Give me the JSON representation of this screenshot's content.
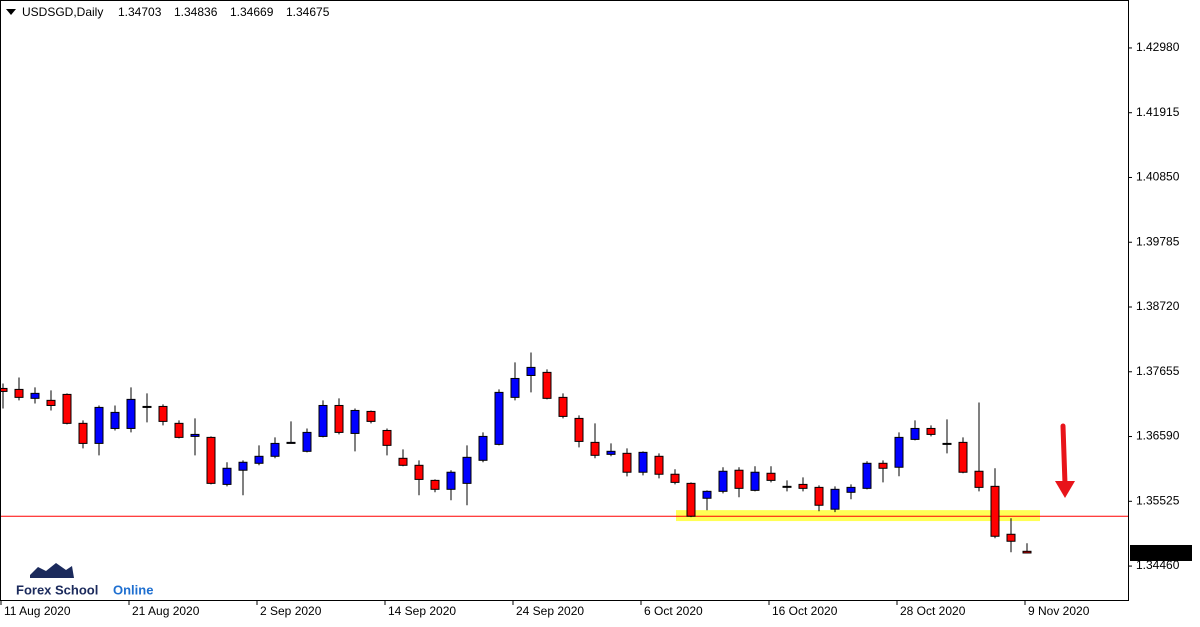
{
  "chart_data": {
    "type": "candlestick",
    "title": "USDSGD,Daily",
    "categories": [
      "11 Aug 2020",
      null,
      null,
      null,
      null,
      null,
      null,
      null,
      "21 Aug 2020",
      null,
      null,
      null,
      null,
      null,
      null,
      null,
      "2 Sep 2020",
      null,
      null,
      null,
      null,
      null,
      null,
      null,
      "14 Sep 2020",
      null,
      null,
      null,
      null,
      null,
      null,
      null,
      "24 Sep 2020",
      null,
      null,
      null,
      null,
      null,
      null,
      null,
      "6 Oct 2020",
      null,
      null,
      null,
      null,
      null,
      null,
      null,
      "16 Oct 2020",
      null,
      null,
      null,
      null,
      null,
      null,
      null,
      "28 Oct 2020",
      null,
      null,
      null,
      null,
      null,
      null,
      null,
      "9 Nov 2020"
    ],
    "open": [
      1.37381,
      1.37365,
      1.37218,
      1.37185,
      1.37283,
      1.36807,
      1.36477,
      1.36723,
      1.36723,
      1.37077,
      1.37085,
      1.36807,
      1.36592,
      1.36576,
      1.35803,
      1.36036,
      1.3615,
      1.36265,
      1.36477,
      1.36347,
      1.36592,
      1.37101,
      1.36641,
      1.37003,
      1.3669,
      1.36232,
      1.36117,
      1.35869,
      1.35722,
      1.3582,
      1.36199,
      1.36461,
      1.37234,
      1.37594,
      1.37645,
      1.37234,
      1.36888,
      1.36494,
      1.36297,
      1.36314,
      1.36003,
      1.36265,
      1.3597,
      1.3582,
      1.35575,
      1.35689,
      1.36036,
      1.35705,
      1.35986,
      1.35763,
      1.35803,
      1.35754,
      1.35395,
      1.35673,
      1.35738,
      1.3615,
      1.36085,
      1.36543,
      1.36723,
      1.36461,
      1.36494,
      1.36019,
      1.35771,
      1.34983,
      1.34703
    ],
    "high": [
      1.37463,
      1.37561,
      1.37398,
      1.37349,
      1.373,
      1.36856,
      1.37101,
      1.37101,
      1.37398,
      1.373,
      1.37118,
      1.36856,
      1.36888,
      1.36592,
      1.36167,
      1.36199,
      1.36445,
      1.36576,
      1.36839,
      1.36723,
      1.37185,
      1.37218,
      1.37052,
      1.37019,
      1.36723,
      1.36379,
      1.36199,
      1.35885,
      1.36036,
      1.36445,
      1.36658,
      1.37365,
      1.37809,
      1.37972,
      1.37694,
      1.373,
      1.36938,
      1.36807,
      1.36477,
      1.36396,
      1.36347,
      1.36314,
      1.36052,
      1.35836,
      1.35705,
      1.36085,
      1.36085,
      1.36101,
      1.36101,
      1.35869,
      1.35918,
      1.35787,
      1.35771,
      1.35803,
      1.36183,
      1.36199,
      1.36658,
      1.36856,
      1.36774,
      1.36872,
      1.36576,
      1.3715,
      1.36068,
      1.35247,
      1.34836
    ],
    "low": [
      1.37052,
      1.37185,
      1.37134,
      1.37019,
      1.3679,
      1.36396,
      1.36281,
      1.3669,
      1.36658,
      1.36823,
      1.36774,
      1.36559,
      1.36281,
      1.35803,
      1.35771,
      1.35624,
      1.36117,
      1.36232,
      1.36477,
      1.3633,
      1.36576,
      1.36625,
      1.36347,
      1.36807,
      1.36281,
      1.36101,
      1.35624,
      1.35673,
      1.35542,
      1.3546,
      1.36167,
      1.36445,
      1.37185,
      1.37316,
      1.37201,
      1.36888,
      1.36412,
      1.36232,
      1.36265,
      1.35934,
      1.35951,
      1.35902,
      1.35803,
      1.35264,
      1.35378,
      1.35656,
      1.35591,
      1.35689,
      1.35836,
      1.35689,
      1.35689,
      1.35362,
      1.35346,
      1.35558,
      1.35722,
      1.35836,
      1.35937,
      1.36526,
      1.36592,
      1.36314,
      1.35986,
      1.35689,
      1.34917,
      1.34688,
      1.34669
    ],
    "close": [
      1.37332,
      1.37234,
      1.373,
      1.37101,
      1.36807,
      1.36477,
      1.37069,
      1.36987,
      1.37201,
      1.37085,
      1.36839,
      1.36576,
      1.36625,
      1.3582,
      1.36068,
      1.36167,
      1.36265,
      1.36477,
      1.36494,
      1.36658,
      1.37101,
      1.36658,
      1.37019,
      1.36839,
      1.36445,
      1.36117,
      1.35885,
      1.35722,
      1.36003,
      1.36248,
      1.36592,
      1.37316,
      1.37545,
      1.37727,
      1.37218,
      1.36921,
      1.3651,
      1.36281,
      1.36347,
      1.36003,
      1.3633,
      1.3597,
      1.35836,
      1.3528,
      1.35689,
      1.36019,
      1.35738,
      1.36003,
      1.35869,
      1.35771,
      1.35738,
      1.3546,
      1.35722,
      1.35754,
      1.3615,
      1.36068,
      1.36576,
      1.36723,
      1.36625,
      1.36477,
      1.36003,
      1.35754,
      1.3495,
      1.34868,
      1.34675
    ],
    "up_color": "#0000ff",
    "down_color": "#ff0000",
    "ylim": [
      1.33902,
      1.43752
    ],
    "yticks": [
      {
        "value": 1.4298,
        "label": "1.42980"
      },
      1.41915,
      {
        "value": 1.4085,
        "label": "1.40850"
      },
      1.39785,
      {
        "value": 1.3872,
        "label": "1.38720"
      },
      1.37655,
      {
        "value": 1.3659,
        "label": "1.36590"
      },
      1.35525,
      {
        "value": 1.3446,
        "label": "1.34460"
      }
    ],
    "hline": {
      "value": 1.3528,
      "color": "#ff0000"
    },
    "zone": {
      "range": [
        1.352,
        1.3538
      ],
      "color": "#ffff55"
    },
    "logo": [
      "Forex School",
      "Online"
    ]
  }
}
